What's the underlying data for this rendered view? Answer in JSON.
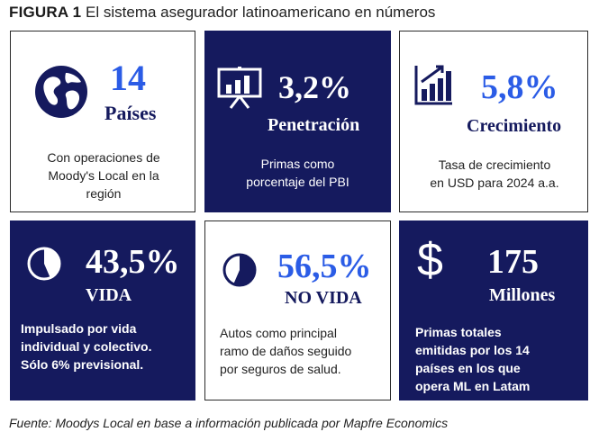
{
  "header": {
    "figure_label": "FIGURA 1",
    "title": "El sistema asegurador latinoamericano en números"
  },
  "cards": [
    {
      "value": "14",
      "label": "Países",
      "description": "Con operaciones de\nMoody's Local en la\nregión",
      "icon": "globe-icon"
    },
    {
      "value": "3,2%",
      "label": "Penetración",
      "description": "Primas como\nporcentaje del PBI",
      "icon": "presentation-chart-icon"
    },
    {
      "value": "5,8%",
      "label": "Crecimiento",
      "description": "Tasa de crecimiento\nen USD para 2024 a.a.",
      "icon": "bar-chart-growth-icon"
    },
    {
      "value": "43,5%",
      "label": "VIDA",
      "description": "Impulsado por vida\nindividual y colectivo.\nSólo 6% previsional.",
      "icon": "pie-icon",
      "share_pct": 43.5
    },
    {
      "value": "56,5%",
      "label": "NO VIDA",
      "description": "Autos como principal\nramo de daños seguido\npor seguros de salud.",
      "icon": "pie-icon",
      "share_pct": 56.5
    },
    {
      "value": "175",
      "label": "Millones",
      "description": "Primas totales\nemitidas por los 14\npaíses en los que\nopera ML en Latam",
      "icon": "dollar-icon"
    }
  ],
  "colors": {
    "navy": "#151a5e",
    "accent_blue": "#2b5ce6"
  },
  "footer": {
    "source": "Fuente: Moodys Local en base a información publicada por Mapfre Economics"
  }
}
